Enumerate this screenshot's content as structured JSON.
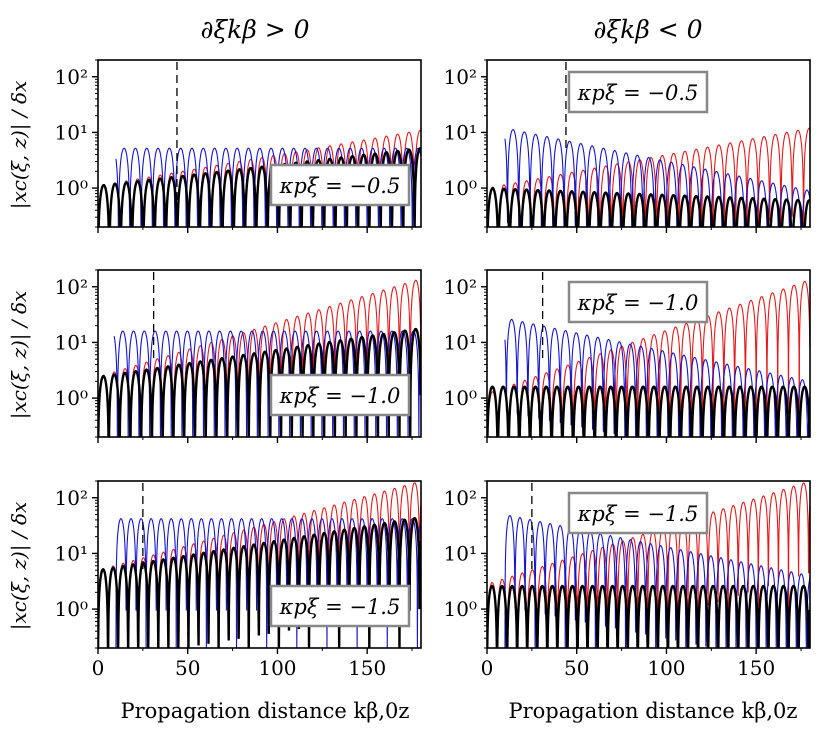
{
  "chart_data": {
    "type": "line",
    "column_titles": [
      "∂ξkβ > 0",
      "∂ξkβ < 0"
    ],
    "ylabel": "|xc(ξ, z)| / δx",
    "xlabel": "Propagation distance  kβ,0z",
    "xlim": [
      0,
      180
    ],
    "ylim": [
      0.2,
      200
    ],
    "yscale": "log",
    "x_ticks": [
      0,
      50,
      100,
      150
    ],
    "x_tick_labels": [
      "0",
      "50",
      "100",
      "150"
    ],
    "y_ticks": [
      1,
      10,
      100
    ],
    "y_tick_labels": [
      "10⁰",
      "10¹",
      "10²"
    ],
    "series_colors": {
      "red": "#e41a1c",
      "blue": "#1515d0",
      "black": "#000000"
    },
    "panels": [
      {
        "row": 0,
        "col": 0,
        "legend": "κpξ = −0.5",
        "legend_position": "lower-right",
        "dashed_line_x": 44,
        "red_amplitude": {
          "start": 1.1,
          "end": 11
        },
        "blue_amplitude": {
          "start": 5.2,
          "end": 5.2,
          "start_x": 10
        },
        "black_amplitude": {
          "start": 1.1,
          "end": 5.2
        },
        "period": 6.3
      },
      {
        "row": 0,
        "col": 1,
        "legend": "κpξ = −0.5",
        "legend_position": "top-right",
        "dashed_line_x": 44,
        "red_amplitude": {
          "start": 1.0,
          "end": 12
        },
        "blue_amplitude": {
          "start": 14,
          "end": 0.9,
          "start_x": 10
        },
        "black_amplitude": {
          "start": 1.0,
          "end": 0.6
        },
        "period": 6.3
      },
      {
        "row": 1,
        "col": 0,
        "legend": "κpξ = −1.0",
        "legend_position": "lower-right",
        "dashed_line_x": 31,
        "red_amplitude": {
          "start": 2.4,
          "end": 140
        },
        "blue_amplitude": {
          "start": 16,
          "end": 16,
          "start_x": 9
        },
        "black_amplitude": {
          "start": 2.4,
          "end": 18
        },
        "period": 6.0
      },
      {
        "row": 1,
        "col": 1,
        "legend": "κpξ = −1.0",
        "legend_position": "top-right",
        "dashed_line_x": 31,
        "red_amplitude": {
          "start": 1.2,
          "end": 135
        },
        "blue_amplitude": {
          "start": 32,
          "end": 2.0,
          "start_x": 10
        },
        "black_amplitude": {
          "start": 1.6,
          "end": 1.6
        },
        "period": 6.0
      },
      {
        "row": 2,
        "col": 0,
        "legend": "κpξ = −1.5",
        "legend_position": "lower-right",
        "dashed_line_x": 25,
        "red_amplitude": {
          "start": 5.0,
          "end": 200
        },
        "blue_amplitude": {
          "start": 42,
          "end": 42,
          "start_x": 10
        },
        "black_amplitude": {
          "start": 5.0,
          "end": 45
        },
        "period": 5.6
      },
      {
        "row": 2,
        "col": 1,
        "legend": "κpξ = −1.5",
        "legend_position": "top-right",
        "dashed_line_x": 25,
        "red_amplitude": {
          "start": 2.8,
          "end": 200
        },
        "blue_amplitude": {
          "start": 58,
          "end": 4.0,
          "start_x": 10
        },
        "black_amplitude": {
          "start": 2.6,
          "end": 2.6
        },
        "period": 5.6
      }
    ]
  }
}
